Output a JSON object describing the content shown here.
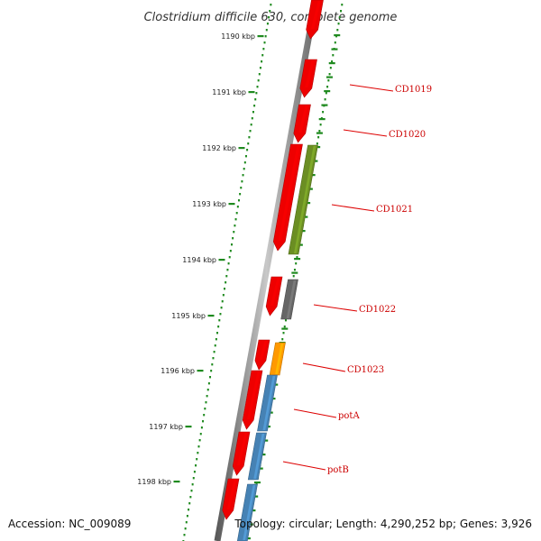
{
  "title": "Clostridium difficile 630, complete genome",
  "ruler": {
    "ticks": [
      "1190 kbp",
      "1191 kbp",
      "1192 kbp",
      "1193 kbp",
      "1194 kbp",
      "1195 kbp",
      "1196 kbp",
      "1197 kbp",
      "1198 kbp"
    ]
  },
  "colors": {
    "backbone": "#8a8a8a",
    "ruler_dots": "#1f8a1f",
    "label_line": "#dd0000",
    "label_text": "#cc0000",
    "cds": "#ee0000",
    "rna_olive": "#6b8e23",
    "gray": "#666666",
    "orange": "#ff9900",
    "blue": "#4682b4"
  },
  "features": [
    {
      "name": "red-cds-1",
      "color": "cds"
    },
    {
      "name": "red-cds-2",
      "color": "cds"
    },
    {
      "name": "red-cds-3",
      "color": "cds"
    },
    {
      "name": "red-cds-4",
      "color": "cds"
    },
    {
      "name": "olive-feature",
      "color": "rna_olive"
    },
    {
      "name": "red-cds-5",
      "color": "cds"
    },
    {
      "name": "gray-feature",
      "color": "gray"
    },
    {
      "name": "red-cds-6",
      "color": "cds"
    },
    {
      "name": "orange-feature",
      "color": "orange"
    },
    {
      "name": "red-cds-7",
      "color": "cds"
    },
    {
      "name": "blue-feature-1",
      "color": "blue"
    },
    {
      "name": "red-cds-8",
      "color": "cds"
    },
    {
      "name": "blue-feature-2",
      "color": "blue"
    },
    {
      "name": "red-cds-9",
      "color": "cds"
    },
    {
      "name": "blue-feature-3",
      "color": "blue"
    }
  ],
  "gene_labels": [
    "CD1019",
    "CD1020",
    "CD1021",
    "CD1022",
    "CD1023",
    "potA",
    "potB"
  ],
  "footer": {
    "accession": "Accession: NC_009089",
    "topology": "Topology: circular; Length: 4,290,252 bp; Genes: 3,926"
  }
}
